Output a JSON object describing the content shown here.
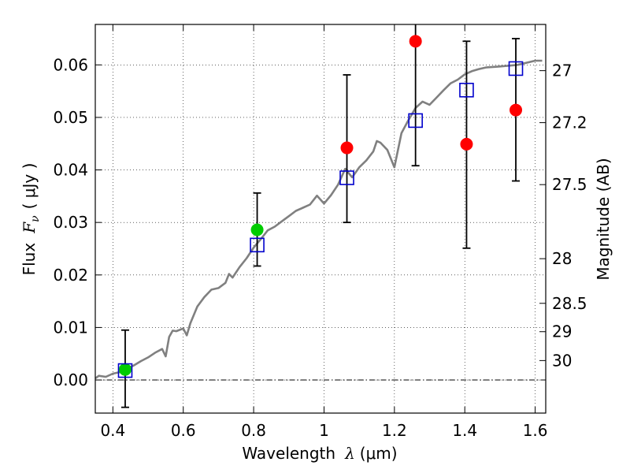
{
  "chart_data": {
    "type": "scatter",
    "title": "",
    "xlabel_text": "Wavelength",
    "xlabel_symbol": "λ",
    "xlabel_unit": "(μm)",
    "ylabel_text": "Flux",
    "ylabel_symbol": "F",
    "ylabel_subscript": "ν",
    "ylabel_unit": "( μJy )",
    "y2label": "Magnitude (AB)",
    "xlim": [
      0.35,
      1.63
    ],
    "ylim": [
      -0.0063,
      0.0677
    ],
    "grid": true,
    "x_ticks": [
      0.4,
      0.6,
      0.8,
      1.0,
      1.2,
      1.4,
      1.6
    ],
    "x_tick_labels": [
      "0.4",
      "0.6",
      "0.8",
      "1",
      "1.2",
      "1.4",
      "1.6"
    ],
    "y_ticks": [
      0.0,
      0.01,
      0.02,
      0.03,
      0.04,
      0.05,
      0.06
    ],
    "y_tick_labels": [
      "0.00",
      "0.01",
      "0.02",
      "0.03",
      "0.04",
      "0.05",
      "0.06"
    ],
    "y2_ticks": [
      {
        "label": "27",
        "flux": 0.0589
      },
      {
        "label": "27.2",
        "flux": 0.049
      },
      {
        "label": "27.5",
        "flux": 0.0372
      },
      {
        "label": "28",
        "flux": 0.0231
      },
      {
        "label": "28.5",
        "flux": 0.0146
      },
      {
        "label": "29",
        "flux": 0.0092
      },
      {
        "label": "30",
        "flux": 0.0037
      }
    ],
    "model_spectrum": {
      "color": "#808080",
      "x": [
        0.35,
        0.36,
        0.38,
        0.4,
        0.42,
        0.44,
        0.46,
        0.48,
        0.5,
        0.52,
        0.54,
        0.55,
        0.56,
        0.57,
        0.58,
        0.6,
        0.61,
        0.62,
        0.64,
        0.66,
        0.68,
        0.7,
        0.72,
        0.73,
        0.74,
        0.76,
        0.78,
        0.8,
        0.82,
        0.84,
        0.86,
        0.88,
        0.9,
        0.92,
        0.94,
        0.96,
        0.98,
        1.0,
        1.02,
        1.04,
        1.06,
        1.08,
        1.1,
        1.12,
        1.14,
        1.15,
        1.16,
        1.18,
        1.2,
        1.22,
        1.24,
        1.26,
        1.28,
        1.3,
        1.32,
        1.34,
        1.36,
        1.38,
        1.4,
        1.42,
        1.44,
        1.46,
        1.5,
        1.55,
        1.6,
        1.62
      ],
      "y": [
        0.0003,
        0.0008,
        0.0006,
        0.0012,
        0.0015,
        0.0022,
        0.0028,
        0.0036,
        0.0043,
        0.0052,
        0.0059,
        0.0045,
        0.0082,
        0.0094,
        0.0093,
        0.0098,
        0.0085,
        0.0108,
        0.014,
        0.0158,
        0.0172,
        0.0175,
        0.0185,
        0.0202,
        0.0195,
        0.0215,
        0.0232,
        0.0252,
        0.0268,
        0.0285,
        0.0292,
        0.0302,
        0.0312,
        0.0322,
        0.0328,
        0.0334,
        0.0351,
        0.0336,
        0.0352,
        0.0372,
        0.0402,
        0.0386,
        0.0405,
        0.0418,
        0.0435,
        0.0455,
        0.0452,
        0.0438,
        0.0405,
        0.047,
        0.0495,
        0.0518,
        0.053,
        0.0524,
        0.0538,
        0.0552,
        0.0565,
        0.0572,
        0.0582,
        0.0588,
        0.0592,
        0.0595,
        0.0597,
        0.06,
        0.0608,
        0.0608
      ]
    },
    "model_bands": {
      "marker": "open-square",
      "color": "#0000cc",
      "x": [
        0.435,
        0.81,
        1.065,
        1.26,
        1.405,
        1.545
      ],
      "y": [
        0.0018,
        0.0257,
        0.0385,
        0.0494,
        0.0552,
        0.0593
      ]
    },
    "observations": [
      {
        "x": 0.435,
        "y": 0.002,
        "yerr_low": 0.0072,
        "yerr_high": 0.0075,
        "color": "#00cc00"
      },
      {
        "x": 0.81,
        "y": 0.0286,
        "yerr_low": 0.0069,
        "yerr_high": 0.007,
        "color": "#00cc00"
      },
      {
        "x": 1.065,
        "y": 0.0442,
        "yerr_low": 0.0142,
        "yerr_high": 0.0139,
        "color": "#ff0000"
      },
      {
        "x": 1.26,
        "y": 0.0645,
        "yerr_low": 0.0237,
        "yerr_high": 0.0185,
        "color": "#ff0000"
      },
      {
        "x": 1.405,
        "y": 0.0449,
        "yerr_low": 0.0198,
        "yerr_high": 0.0196,
        "color": "#ff0000"
      },
      {
        "x": 1.545,
        "y": 0.0514,
        "yerr_low": 0.0135,
        "yerr_high": 0.0136,
        "color": "#ff0000"
      }
    ]
  }
}
